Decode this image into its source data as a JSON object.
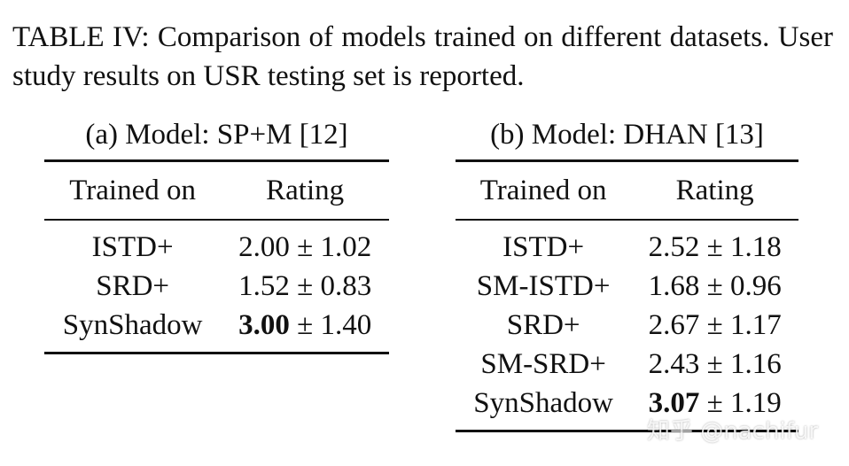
{
  "caption": "TABLE IV: Comparison of models trained on different datasets. User study results on USR testing set is reported.",
  "tables": [
    {
      "subcaption": "(a) Model: SP+M [12]",
      "headers": [
        "Trained on",
        "Rating"
      ],
      "rows": [
        {
          "name": "ISTD+",
          "mean": "2.00",
          "std": "1.02",
          "best": false
        },
        {
          "name": "SRD+",
          "mean": "1.52",
          "std": "0.83",
          "best": false
        },
        {
          "name": "SynShadow",
          "mean": "3.00",
          "std": "1.40",
          "best": true
        }
      ]
    },
    {
      "subcaption": "(b) Model: DHAN [13]",
      "headers": [
        "Trained on",
        "Rating"
      ],
      "rows": [
        {
          "name": "ISTD+",
          "mean": "2.52",
          "std": "1.18",
          "best": false
        },
        {
          "name": "SM-ISTD+",
          "mean": "1.68",
          "std": "0.96",
          "best": false
        },
        {
          "name": "SRD+",
          "mean": "2.67",
          "std": "1.17",
          "best": false
        },
        {
          "name": "SM-SRD+",
          "mean": "2.43",
          "std": "1.16",
          "best": false
        },
        {
          "name": "SynShadow",
          "mean": "3.07",
          "std": "1.19",
          "best": true
        }
      ]
    }
  ],
  "pm_symbol": "±",
  "watermark": "知乎 @nachifur"
}
